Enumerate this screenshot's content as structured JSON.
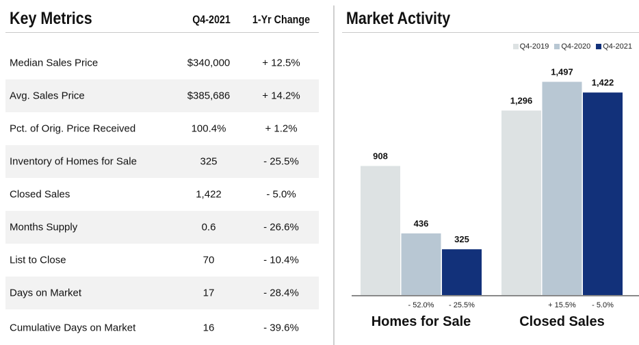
{
  "key_metrics": {
    "title": "Key Metrics",
    "col1": "Q4-2021",
    "col2": "1-Yr Change",
    "rows": [
      {
        "label": "Median Sales Price",
        "value": "$340,000",
        "change": "+ 12.5%"
      },
      {
        "label": "Avg. Sales Price",
        "value": "$385,686",
        "change": "+ 14.2%"
      },
      {
        "label": "Pct. of Orig. Price Received",
        "value": "100.4%",
        "change": "+ 1.2%"
      },
      {
        "label": "Inventory of Homes for Sale",
        "value": "325",
        "change": "- 25.5%"
      },
      {
        "label": "Closed Sales",
        "value": "1,422",
        "change": "- 5.0%"
      },
      {
        "label": "Months Supply",
        "value": "0.6",
        "change": "- 26.6%"
      },
      {
        "label": "List to Close",
        "value": "70",
        "change": "- 10.4%"
      },
      {
        "label": "Days on Market",
        "value": "17",
        "change": "- 28.4%"
      },
      {
        "label": "Cumulative Days on Market",
        "value": "16",
        "change": "- 39.6%"
      }
    ]
  },
  "market_activity": {
    "title": "Market Activity"
  },
  "chart_data": {
    "type": "bar",
    "title": "Market Activity",
    "categories": [
      "Homes for Sale",
      "Closed Sales"
    ],
    "series": [
      {
        "name": "Q4-2019",
        "values": [
          908,
          1296
        ],
        "color": "#dde2e3"
      },
      {
        "name": "Q4-2020",
        "values": [
          436,
          1497
        ],
        "color": "#b8c7d3"
      },
      {
        "name": "Q4-2021",
        "values": [
          325,
          1422
        ],
        "color": "#12317a"
      }
    ],
    "value_labels": [
      [
        "908",
        "1,296"
      ],
      [
        "436",
        "1,497"
      ],
      [
        "325",
        "1,422"
      ]
    ],
    "change_labels": [
      [
        "",
        ""
      ],
      [
        "- 52.0%",
        "+ 15.5%"
      ],
      [
        "- 25.5%",
        "- 5.0%"
      ]
    ],
    "ylim": [
      0,
      1600
    ],
    "grid": false,
    "legend_position": "top-right"
  }
}
